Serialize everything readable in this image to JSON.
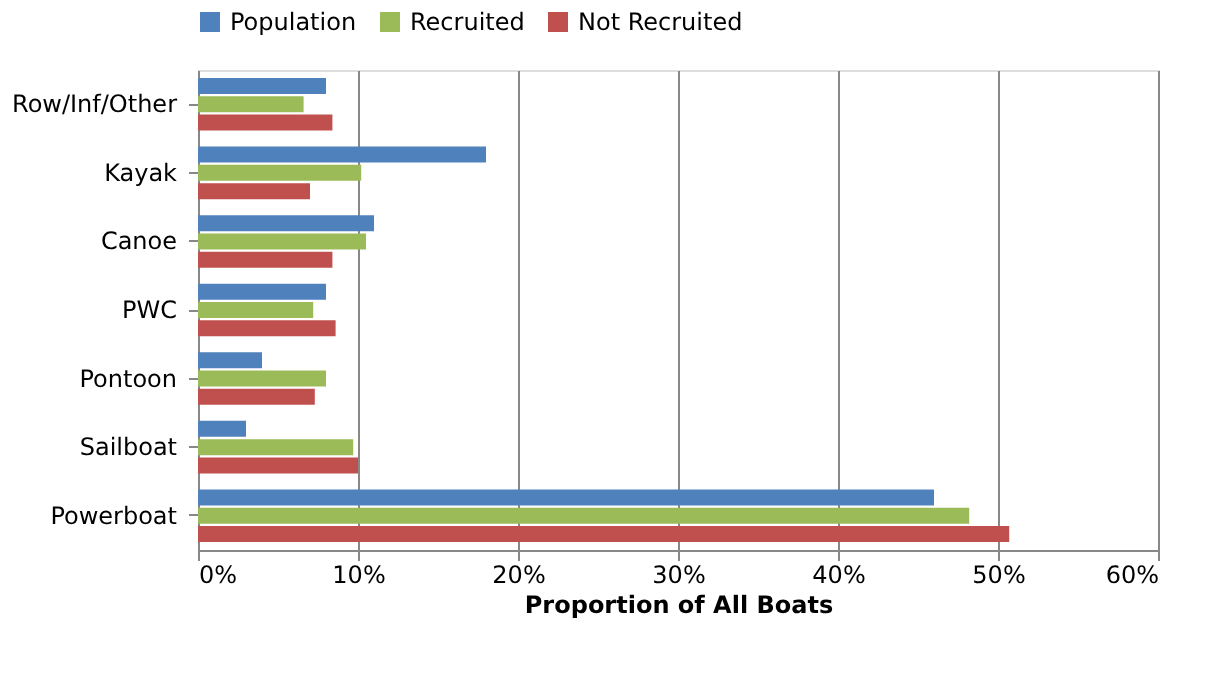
{
  "chart_data": {
    "type": "bar",
    "orientation": "horizontal",
    "xlabel": "Proportion of All Boats",
    "categories": [
      "Row/Inf/Other",
      "Kayak",
      "Canoe",
      "PWC",
      "Pontoon",
      "Sailboat",
      "Powerboat"
    ],
    "series": [
      {
        "name": "Population",
        "color": "#4f81bd",
        "values": [
          8,
          18,
          11,
          8,
          4,
          3,
          46
        ]
      },
      {
        "name": "Recruited",
        "color": "#9bbb59",
        "values": [
          6.6,
          10.2,
          10.5,
          7.2,
          8,
          9.7,
          48.2
        ]
      },
      {
        "name": "Not Recruited",
        "color": "#c0504d",
        "values": [
          8.4,
          7,
          8.4,
          8.6,
          7.3,
          10,
          50.7
        ]
      }
    ],
    "xlim": [
      0,
      60
    ],
    "xticks": [
      {
        "value": 0,
        "label": "0%"
      },
      {
        "value": 10,
        "label": "10%"
      },
      {
        "value": 20,
        "label": "20%"
      },
      {
        "value": 30,
        "label": "30%"
      },
      {
        "value": 40,
        "label": "40%"
      },
      {
        "value": 50,
        "label": "50%"
      },
      {
        "value": 60,
        "label": "60%"
      }
    ],
    "grid": "x",
    "legend": "top"
  }
}
